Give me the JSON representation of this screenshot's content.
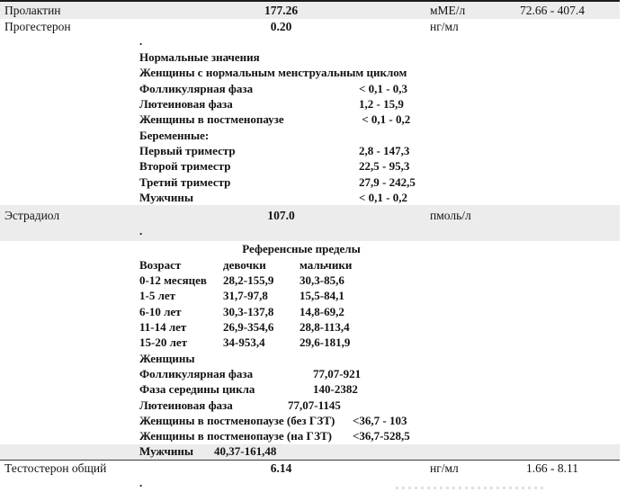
{
  "colors": {
    "row_band": "#ececec",
    "top_border": "#1c1c1c",
    "text": "#121212"
  },
  "rows": {
    "prolactin": {
      "name": "Пролактин",
      "value": "177.26",
      "unit": "мМЕ/л",
      "ref": "72.66 - 407.4"
    },
    "progesterone": {
      "name": "Прогестерон",
      "value": "0.20",
      "unit": "нг/мл",
      "ref": ""
    },
    "estradiol": {
      "name": "Эстрадиол",
      "value": "107.0",
      "unit": "пмоль/л",
      "ref": ""
    },
    "testosterone": {
      "name": "Тестостерон общий",
      "value": "6.14",
      "unit": "нг/мл",
      "ref": "1.66 - 8.11"
    }
  },
  "progesterone_comment": {
    "dot": ".",
    "title": "Нормальные значения",
    "subtitle": "Женщины с нормальным менструальным циклом",
    "lines": [
      {
        "label": "Фолликулярная фаза",
        "value": "< 0,1 - 0,3"
      },
      {
        "label": "Лютеиновая фаза",
        "value": "1,2 - 15,9"
      },
      {
        "label": "Женщины в постменопаузе",
        "value": " < 0,1 - 0,2"
      },
      {
        "label": "Беременные:",
        "value": ""
      },
      {
        "label": "Первый триместр",
        "value": "2,8 - 147,3"
      },
      {
        "label": "Второй триместр",
        "value": "22,5 - 95,3"
      },
      {
        "label": "Третий триместр",
        "value": "27,9 - 242,5"
      },
      {
        "label": "Мужчины",
        "value": "< 0,1 - 0,2"
      }
    ]
  },
  "estradiol_comment": {
    "dot": ".",
    "title": "Референсные пределы",
    "age_table": {
      "headers": [
        "Возраст",
        "девочки",
        "мальчики"
      ],
      "rows": [
        [
          "0-12 месяцев",
          "28,2-155,9",
          "30,3-85,6"
        ],
        [
          "1-5 лет",
          "31,7-97,8",
          "15,5-84,1"
        ],
        [
          "6-10 лет",
          "30,3-137,8",
          "14,8-69,2"
        ],
        [
          "11-14 лет",
          "26,9-354,6",
          "28,8-113,4"
        ],
        [
          "15-20 лет",
          "34-953,4",
          "29,6-181,9"
        ]
      ]
    },
    "women_header": "Женщины",
    "women_rows": [
      {
        "label": "Фолликулярная фаза",
        "value": "77,07-921"
      },
      {
        "label": "Фаза середины цикла",
        "value": "140-2382"
      },
      {
        "label": "Лютеиновая фаза",
        "value": "77,07-1145"
      },
      {
        "label": "Женщины в постменопаузе (без ГЗТ)",
        "value": "<36,7 - 103"
      },
      {
        "label": "Женщины в постменопаузе (на ГЗТ)",
        "value": "<36,7-528,5"
      }
    ],
    "men_row": {
      "label": "Мужчины",
      "value": "40,37-161,48"
    }
  },
  "testosterone_comment": {
    "dot": "."
  }
}
